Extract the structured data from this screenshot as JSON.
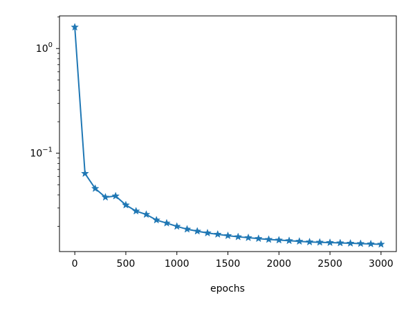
{
  "chart_data": {
    "type": "line",
    "title": "",
    "xlabel": "epochs",
    "ylabel": "",
    "y_scale": "log",
    "grid": false,
    "legend": "none",
    "line_color": "#1f77b4",
    "marker": "star",
    "xlim": [
      -150,
      3150
    ],
    "ylim": [
      0.0115,
      2.05
    ],
    "x_ticks": [
      0,
      500,
      1000,
      1500,
      2000,
      2500,
      3000
    ],
    "x_tick_labels": [
      "0",
      "500",
      "1000",
      "1500",
      "2000",
      "2500",
      "3000"
    ],
    "y_major_ticks": [
      {
        "value": 1,
        "base": "10",
        "exp": "0"
      },
      {
        "value": 0.1,
        "base": "10",
        "exp": "−1"
      }
    ],
    "y_minor_ticks": [
      0.02,
      0.03,
      0.04,
      0.05,
      0.06,
      0.07,
      0.08,
      0.09,
      0.2,
      0.3,
      0.4,
      0.5,
      0.6,
      0.7,
      0.8,
      0.9,
      2
    ],
    "series": [
      {
        "x": [
          0,
          100,
          200,
          300,
          400,
          500,
          600,
          700,
          800,
          900,
          1000,
          1100,
          1200,
          1300,
          1400,
          1500,
          1600,
          1700,
          1800,
          1900,
          2000,
          2100,
          2200,
          2300,
          2400,
          2500,
          2600,
          2700,
          2800,
          2900,
          3000
        ],
        "values": [
          1.6,
          0.064,
          0.046,
          0.038,
          0.039,
          0.032,
          0.028,
          0.026,
          0.023,
          0.0215,
          0.02,
          0.0188,
          0.018,
          0.0173,
          0.0168,
          0.0163,
          0.0159,
          0.0156,
          0.0153,
          0.015,
          0.0148,
          0.0146,
          0.0144,
          0.0142,
          0.0141,
          0.014,
          0.0139,
          0.0138,
          0.0137,
          0.0136,
          0.0135
        ]
      }
    ]
  }
}
